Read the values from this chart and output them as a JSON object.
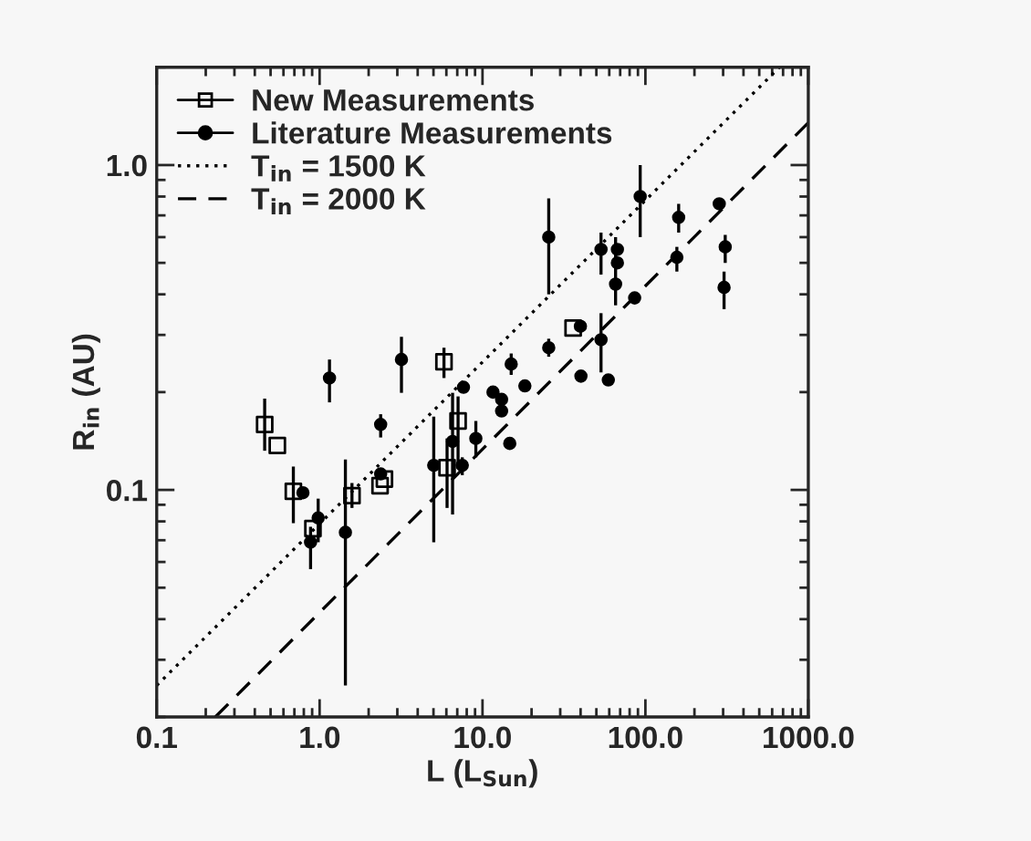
{
  "chart_data": {
    "type": "scatter",
    "xlabel": "L (L$_{Sun}$)",
    "ylabel": "R$_{in}$ (AU)",
    "log": "xy",
    "xlim": [
      0.1,
      1000
    ],
    "ylim": [
      0.02,
      2
    ],
    "xticks": [
      {
        "value": 0.1,
        "label": "0.1"
      },
      {
        "value": 1,
        "label": "1.0"
      },
      {
        "value": 10,
        "label": "10.0"
      },
      {
        "value": 100,
        "label": "100.0"
      },
      {
        "value": 1000,
        "label": "1000.0"
      }
    ],
    "yticks": [
      {
        "value": 0.1,
        "label": "0.1"
      },
      {
        "value": 1,
        "label": "1.0"
      }
    ],
    "grid": false,
    "legend": "top left",
    "series": [
      {
        "name": "New Measurements",
        "marker": "square",
        "color": "#000000",
        "x": [
          5.8,
          36,
          0.46,
          0.55,
          0.69,
          0.91,
          1.58,
          2.5,
          2.35,
          6.06,
          7.08
        ],
        "values": [
          0.248,
          0.315,
          0.159,
          0.137,
          0.099,
          0.076,
          0.096,
          0.108,
          0.103,
          0.117,
          0.163
        ],
        "errors": [
          [
            0.221,
            0.274
          ],
          null,
          [
            0.132,
            0.191
          ],
          null,
          [
            0.079,
            0.118
          ],
          null,
          [
            0.088,
            0.105
          ],
          null,
          null,
          [
            0.088,
            0.144
          ],
          [
            0.116,
            0.194
          ]
        ]
      },
      {
        "name": "Literature Measurements",
        "marker": "circle",
        "color": "#000000",
        "x": [
          25.5,
          1.15,
          3.18,
          25.5,
          15.0,
          7.64,
          11.6,
          18.2,
          40.2,
          39.9,
          0.79,
          0.98,
          0.88,
          1.44,
          2.37,
          2.37,
          5.02,
          6.55,
          7.51,
          9.1,
          13.1,
          13.1,
          14.7,
          92.9,
          160,
          284,
          309,
          304,
          53.4,
          67.3,
          67.3,
          65.6,
          156,
          85.9,
          53.4,
          59.2
        ],
        "values": [
          0.6,
          0.221,
          0.252,
          0.274,
          0.244,
          0.207,
          0.2,
          0.209,
          0.224,
          0.319,
          0.098,
          0.082,
          0.069,
          0.074,
          0.159,
          0.112,
          0.119,
          0.141,
          0.119,
          0.144,
          0.19,
          0.175,
          0.139,
          0.8,
          0.69,
          0.76,
          0.56,
          0.42,
          0.55,
          0.55,
          0.5,
          0.43,
          0.52,
          0.39,
          0.29,
          0.218
        ],
        "errors": [
          [
            0.4,
            0.79
          ],
          [
            0.186,
            0.252
          ],
          [
            0.199,
            0.296
          ],
          [
            0.257,
            0.292
          ],
          [
            0.226,
            0.263
          ],
          null,
          null,
          null,
          null,
          null,
          null,
          [
            0.069,
            0.094
          ],
          [
            0.057,
            0.077
          ],
          [
            0.025,
            0.124
          ],
          [
            0.145,
            0.171
          ],
          null,
          [
            0.069,
            0.168
          ],
          [
            0.084,
            0.199
          ],
          [
            0.111,
            0.126
          ],
          [
            0.126,
            0.163
          ],
          null,
          null,
          null,
          [
            0.6,
            1.0
          ],
          [
            0.62,
            0.76
          ],
          null,
          [
            0.5,
            0.61
          ],
          [
            0.36,
            0.47
          ],
          [
            0.46,
            0.62
          ],
          null,
          null,
          [
            0.37,
            0.6
          ],
          [
            0.47,
            0.56
          ],
          null,
          [
            0.23,
            0.35
          ],
          null
        ]
      },
      {
        "name": "T$_{in}$ = 1500 K",
        "type": "line",
        "line_style": "dotted",
        "color": "#000000",
        "x": [
          0.1,
          665
        ],
        "values": [
          0.025,
          2
        ]
      },
      {
        "name": "T$_{in}$ = 2000 K",
        "type": "line",
        "line_style": "dashed",
        "color": "#000000",
        "x": [
          0.229,
          1000
        ],
        "values": [
          0.02,
          1.35
        ]
      }
    ]
  }
}
